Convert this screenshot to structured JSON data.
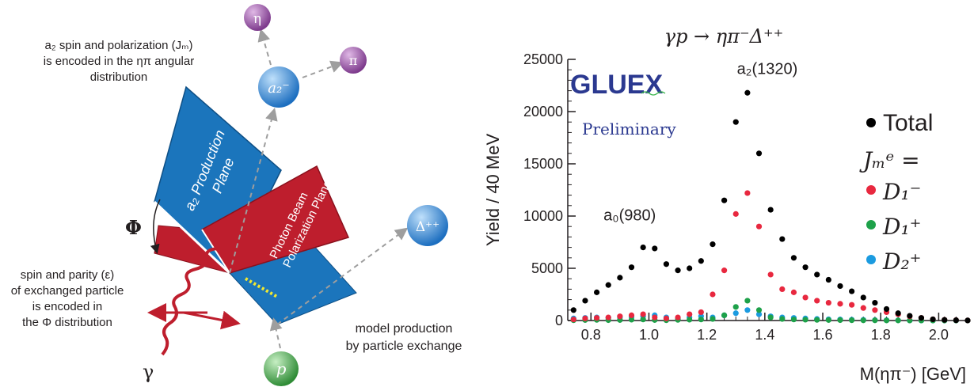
{
  "diagram": {
    "note_top_line1": "a₂ spin and polarization (Jₘ)",
    "note_top_line2": "is encoded in the ηπ angular",
    "note_top_line3": "distribution",
    "note_left_line1": "spin and parity (ε)",
    "note_left_line2": "of exchanged particle",
    "note_left_line3": "is encoded in",
    "note_left_line4": "the Φ distribution",
    "note_bottom_line1": "model production",
    "note_bottom_line2": "by particle exchange",
    "phi_label": "Φ",
    "gamma_label": "γ",
    "eta_label": "η",
    "pi_label": "π",
    "a2_label": "a₂⁻",
    "delta_label": "Δ⁺⁺",
    "p_label": "p",
    "production_plane_line1": "a₂ Production",
    "production_plane_line2": "Plane",
    "polarization_plane_line1": "Photon Beam",
    "polarization_plane_line2": "Polarization Plane",
    "colors": {
      "blue_plane": "#1b75bc",
      "red_plane": "#be1e2d",
      "eta_pi": "#9b4fa8",
      "a2_delta": "#3a8fd6",
      "proton": "#3fa34d",
      "arrow": "#9e9e9e"
    }
  },
  "chart_data": {
    "type": "scatter",
    "title": "γp → ηπ⁻Δ⁺⁺",
    "xlabel": "M(ηπ⁻) [GeV]",
    "ylabel": "Yield / 40 MeV",
    "xlim": [
      0.72,
      2.1
    ],
    "ylim": [
      0,
      25000
    ],
    "xticks": [
      "0.8",
      "1.0",
      "1.2",
      "1.4",
      "1.6",
      "1.8",
      "2.0"
    ],
    "yticks": [
      "0",
      "5000",
      "10000",
      "15000",
      "20000",
      "25000"
    ],
    "grid": false,
    "legend_title": "Jₘᵉ =",
    "legend_position": "top-right",
    "logo": {
      "name": "GLUEX",
      "sub": "Preliminary"
    },
    "annotations": [
      {
        "text": "a₂(1320)",
        "x": 1.32,
        "y": 23600
      },
      {
        "text": "a₀(980)",
        "x": 0.98,
        "y": 9600
      }
    ],
    "series": [
      {
        "name": "Total",
        "color": "#000000",
        "x": [
          0.74,
          0.78,
          0.82,
          0.86,
          0.9,
          0.94,
          0.98,
          1.02,
          1.06,
          1.1,
          1.14,
          1.18,
          1.22,
          1.26,
          1.3,
          1.34,
          1.38,
          1.42,
          1.46,
          1.5,
          1.54,
          1.58,
          1.62,
          1.66,
          1.7,
          1.74,
          1.78,
          1.82,
          1.86,
          1.9,
          1.94,
          1.98,
          2.02,
          2.06,
          2.1
        ],
        "y": [
          1000,
          1900,
          2700,
          3400,
          4100,
          5100,
          7000,
          6900,
          5400,
          4800,
          5000,
          5700,
          7300,
          11500,
          19000,
          21800,
          16000,
          10600,
          7800,
          6000,
          5100,
          4400,
          3900,
          3300,
          2800,
          2200,
          1700,
          1100,
          700,
          450,
          250,
          120,
          60,
          30,
          10
        ]
      },
      {
        "name": "D₁⁻",
        "color": "#e8283f",
        "x": [
          0.74,
          0.78,
          0.82,
          0.86,
          0.9,
          0.94,
          0.98,
          1.02,
          1.06,
          1.1,
          1.14,
          1.18,
          1.22,
          1.26,
          1.3,
          1.34,
          1.38,
          1.42,
          1.46,
          1.5,
          1.54,
          1.58,
          1.62,
          1.66,
          1.7,
          1.74,
          1.78,
          1.82,
          1.86,
          1.9,
          1.94,
          1.98,
          2.02,
          2.06,
          2.1
        ],
        "y": [
          100,
          200,
          250,
          300,
          400,
          500,
          600,
          300,
          200,
          300,
          600,
          800,
          2500,
          4800,
          10200,
          12200,
          9000,
          4400,
          3000,
          2700,
          2200,
          1900,
          1700,
          1600,
          1500,
          1200,
          1000,
          800,
          600,
          400,
          250,
          120,
          60,
          30,
          10
        ]
      },
      {
        "name": "D₁⁺",
        "color": "#1ea14a",
        "x": [
          0.74,
          0.78,
          0.82,
          0.86,
          0.9,
          0.94,
          0.98,
          1.02,
          1.06,
          1.1,
          1.14,
          1.18,
          1.22,
          1.26,
          1.3,
          1.34,
          1.38,
          1.42,
          1.46,
          1.5,
          1.54,
          1.58,
          1.62,
          1.66,
          1.7,
          1.74,
          1.78,
          1.82,
          1.86,
          1.9,
          1.94,
          1.98,
          2.02,
          2.06,
          2.1
        ],
        "y": [
          30,
          50,
          60,
          40,
          50,
          80,
          100,
          50,
          30,
          60,
          80,
          100,
          150,
          500,
          1300,
          1900,
          1000,
          300,
          150,
          100,
          80,
          60,
          50,
          40,
          30,
          20,
          20,
          10,
          10,
          5,
          5,
          0,
          0,
          0,
          0
        ]
      },
      {
        "name": "D₂⁺",
        "color": "#1b9be0",
        "x": [
          0.74,
          0.78,
          0.82,
          0.86,
          0.9,
          0.94,
          0.98,
          1.02,
          1.06,
          1.1,
          1.14,
          1.18,
          1.22,
          1.26,
          1.3,
          1.34,
          1.38,
          1.42,
          1.46,
          1.5,
          1.54,
          1.58,
          1.62,
          1.66,
          1.7,
          1.74,
          1.78,
          1.82,
          1.86,
          1.9,
          1.94,
          1.98,
          2.02,
          2.06,
          2.1
        ],
        "y": [
          200,
          250,
          300,
          250,
          300,
          350,
          400,
          500,
          300,
          200,
          300,
          400,
          300,
          500,
          700,
          1000,
          600,
          400,
          300,
          250,
          200,
          150,
          120,
          100,
          80,
          60,
          40,
          30,
          20,
          10,
          5,
          5,
          0,
          0,
          0
        ]
      }
    ]
  }
}
